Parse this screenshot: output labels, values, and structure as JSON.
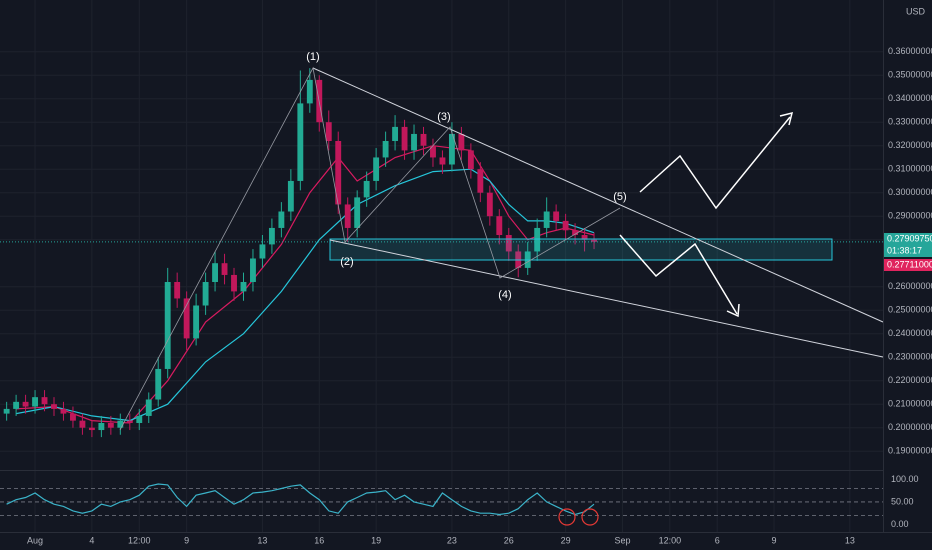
{
  "chart_data": {
    "type": "candlestick",
    "unit": "USD",
    "up_color": "#22ab94",
    "down_color": "#c2185b",
    "grid": true,
    "xlim": [
      -0.85,
      45.75
    ],
    "ylim": [
      0.182,
      0.382
    ],
    "xticks": [
      {
        "value": 1,
        "label": "Aug"
      },
      4,
      {
        "value": 6.5,
        "label": "12:00"
      },
      9,
      13,
      16,
      19,
      23,
      26,
      29,
      {
        "value": 32,
        "label": "Sep"
      },
      {
        "value": 34.5,
        "label": "12:00"
      },
      {
        "value": 37,
        "label": "6"
      },
      {
        "value": 40,
        "label": "9"
      },
      {
        "value": 44,
        "label": "13"
      }
    ],
    "yticks": [
      {
        "value": 0.19,
        "label": "0.19000000"
      },
      {
        "value": 0.2,
        "label": "0.20000000"
      },
      {
        "value": 0.21,
        "label": "0.21000000"
      },
      {
        "value": 0.22,
        "label": "0.22000000"
      },
      {
        "value": 0.23,
        "label": "0.23000000"
      },
      {
        "value": 0.24,
        "label": "0.24000000"
      },
      {
        "value": 0.25,
        "label": "0.25000000"
      },
      {
        "value": 0.26,
        "label": "0.26000000"
      },
      {
        "value": 0.28,
        "label": "0.28000000"
      },
      {
        "value": 0.29,
        "label": "0.29000000"
      },
      {
        "value": 0.3,
        "label": "0.30000000"
      },
      {
        "value": 0.31,
        "label": "0.31000000"
      },
      {
        "value": 0.32,
        "label": "0.32000000"
      },
      {
        "value": 0.33,
        "label": "0.33000000"
      },
      {
        "value": 0.34,
        "label": "0.34000000"
      },
      {
        "value": 0.35,
        "label": "0.35000000"
      },
      {
        "value": 0.36,
        "label": "0.36000000"
      }
    ],
    "x": [
      -0.5,
      0,
      0.5,
      1,
      1.5,
      2,
      2.5,
      3,
      3.5,
      4,
      4.5,
      5,
      5.5,
      6,
      6.5,
      7,
      7.5,
      8,
      8.5,
      9,
      9.5,
      10,
      10.5,
      11,
      11.5,
      12,
      12.5,
      13,
      13.5,
      14,
      14.5,
      15,
      15.5,
      16,
      16.5,
      17,
      17.5,
      18,
      18.5,
      19,
      19.5,
      20,
      20.5,
      21,
      21.5,
      22,
      22.5,
      23,
      23.5,
      24,
      24.5,
      25,
      25.5,
      26,
      26.5,
      27,
      27.5,
      28,
      28.5,
      29,
      29.5,
      30,
      30.5
    ],
    "open": [
      0.206,
      0.208,
      0.211,
      0.209,
      0.213,
      0.21,
      0.208,
      0.206,
      0.203,
      0.2,
      0.199,
      0.202,
      0.2,
      0.203,
      0.202,
      0.205,
      0.212,
      0.225,
      0.262,
      0.255,
      0.238,
      0.252,
      0.262,
      0.27,
      0.265,
      0.258,
      0.262,
      0.272,
      0.278,
      0.285,
      0.292,
      0.305,
      0.338,
      0.348,
      0.33,
      0.322,
      0.295,
      0.285,
      0.298,
      0.305,
      0.315,
      0.322,
      0.328,
      0.318,
      0.325,
      0.32,
      0.315,
      0.312,
      0.325,
      0.318,
      0.31,
      0.3,
      0.29,
      0.282,
      0.275,
      0.268,
      0.275,
      0.285,
      0.292,
      0.288,
      0.284,
      0.282,
      0.28
    ],
    "high": [
      0.211,
      0.214,
      0.214,
      0.216,
      0.216,
      0.213,
      0.211,
      0.209,
      0.206,
      0.203,
      0.205,
      0.205,
      0.206,
      0.206,
      0.208,
      0.215,
      0.23,
      0.268,
      0.266,
      0.258,
      0.257,
      0.266,
      0.275,
      0.274,
      0.268,
      0.266,
      0.276,
      0.282,
      0.289,
      0.296,
      0.31,
      0.352,
      0.353,
      0.35,
      0.335,
      0.326,
      0.298,
      0.301,
      0.309,
      0.319,
      0.326,
      0.333,
      0.331,
      0.329,
      0.328,
      0.323,
      0.318,
      0.33,
      0.328,
      0.321,
      0.313,
      0.303,
      0.293,
      0.285,
      0.278,
      0.279,
      0.289,
      0.298,
      0.295,
      0.291,
      0.287,
      0.285,
      0.283
    ],
    "low": [
      0.203,
      0.205,
      0.206,
      0.206,
      0.207,
      0.205,
      0.203,
      0.2,
      0.197,
      0.196,
      0.196,
      0.197,
      0.197,
      0.199,
      0.199,
      0.202,
      0.209,
      0.221,
      0.251,
      0.233,
      0.235,
      0.248,
      0.258,
      0.261,
      0.254,
      0.254,
      0.258,
      0.268,
      0.274,
      0.281,
      0.288,
      0.301,
      0.334,
      0.326,
      0.318,
      0.291,
      0.279,
      0.281,
      0.294,
      0.301,
      0.311,
      0.318,
      0.314,
      0.314,
      0.316,
      0.311,
      0.308,
      0.309,
      0.314,
      0.306,
      0.296,
      0.286,
      0.278,
      0.271,
      0.264,
      0.265,
      0.271,
      0.281,
      0.284,
      0.28,
      0.278,
      0.275,
      0.276
    ],
    "close": [
      0.208,
      0.211,
      0.209,
      0.213,
      0.21,
      0.208,
      0.206,
      0.203,
      0.2,
      0.199,
      0.202,
      0.2,
      0.203,
      0.202,
      0.205,
      0.212,
      0.225,
      0.262,
      0.255,
      0.238,
      0.252,
      0.262,
      0.27,
      0.265,
      0.258,
      0.262,
      0.272,
      0.278,
      0.285,
      0.292,
      0.305,
      0.338,
      0.348,
      0.33,
      0.322,
      0.295,
      0.285,
      0.298,
      0.305,
      0.315,
      0.322,
      0.328,
      0.318,
      0.325,
      0.32,
      0.315,
      0.312,
      0.325,
      0.318,
      0.31,
      0.3,
      0.29,
      0.282,
      0.275,
      0.268,
      0.275,
      0.285,
      0.292,
      0.288,
      0.284,
      0.282,
      0.28,
      0.2791
    ],
    "moving_averages": [
      {
        "color": "#d81b60",
        "x": [
          0,
          2,
          4,
          6,
          8,
          10,
          12,
          14,
          15.5,
          17,
          18,
          20,
          22,
          24,
          25,
          26,
          27,
          28,
          29,
          30.5
        ],
        "values": [
          0.208,
          0.209,
          0.203,
          0.202,
          0.22,
          0.245,
          0.258,
          0.278,
          0.3,
          0.315,
          0.305,
          0.315,
          0.32,
          0.318,
          0.305,
          0.29,
          0.28,
          0.283,
          0.285,
          0.282
        ]
      },
      {
        "color": "#26c6da",
        "x": [
          0,
          2,
          4,
          6,
          8,
          10,
          12,
          14,
          16,
          18,
          20,
          22,
          24,
          25,
          26,
          27,
          28,
          29,
          30.5
        ],
        "values": [
          0.206,
          0.209,
          0.205,
          0.203,
          0.21,
          0.228,
          0.24,
          0.258,
          0.28,
          0.295,
          0.303,
          0.309,
          0.31,
          0.305,
          0.295,
          0.288,
          0.288,
          0.287,
          0.283
        ]
      }
    ],
    "price_labels": [
      {
        "value": 0.2790975,
        "label": "0.27909750",
        "countdown": "01:38:17",
        "color": "#26a69a"
      },
      {
        "value": 0.27711,
        "label": "0.27711000",
        "color": "#e0245e"
      }
    ],
    "annotations": [
      "(1)",
      "(2)",
      "(3)",
      "(4)",
      "(5)"
    ],
    "rsi": {
      "color": "#3bb3c9",
      "ylim": [
        -12.5,
        116.7
      ],
      "yticks": [
        {
          "value": 100,
          "label": "100.00"
        },
        {
          "value": 50,
          "label": "50.00"
        },
        {
          "value": 0,
          "label": "0.00"
        }
      ],
      "bands": [
        80,
        50,
        20
      ],
      "values": [
        45,
        55,
        60,
        70,
        55,
        45,
        40,
        30,
        25,
        30,
        45,
        40,
        50,
        55,
        65,
        85,
        90,
        88,
        60,
        40,
        65,
        70,
        75,
        60,
        45,
        55,
        70,
        72,
        75,
        80,
        85,
        88,
        70,
        55,
        30,
        25,
        50,
        60,
        70,
        72,
        75,
        55,
        65,
        50,
        45,
        40,
        70,
        55,
        40,
        30,
        25,
        25,
        22,
        25,
        35,
        55,
        70,
        50,
        40,
        30,
        22,
        28,
        45
      ]
    }
  }
}
